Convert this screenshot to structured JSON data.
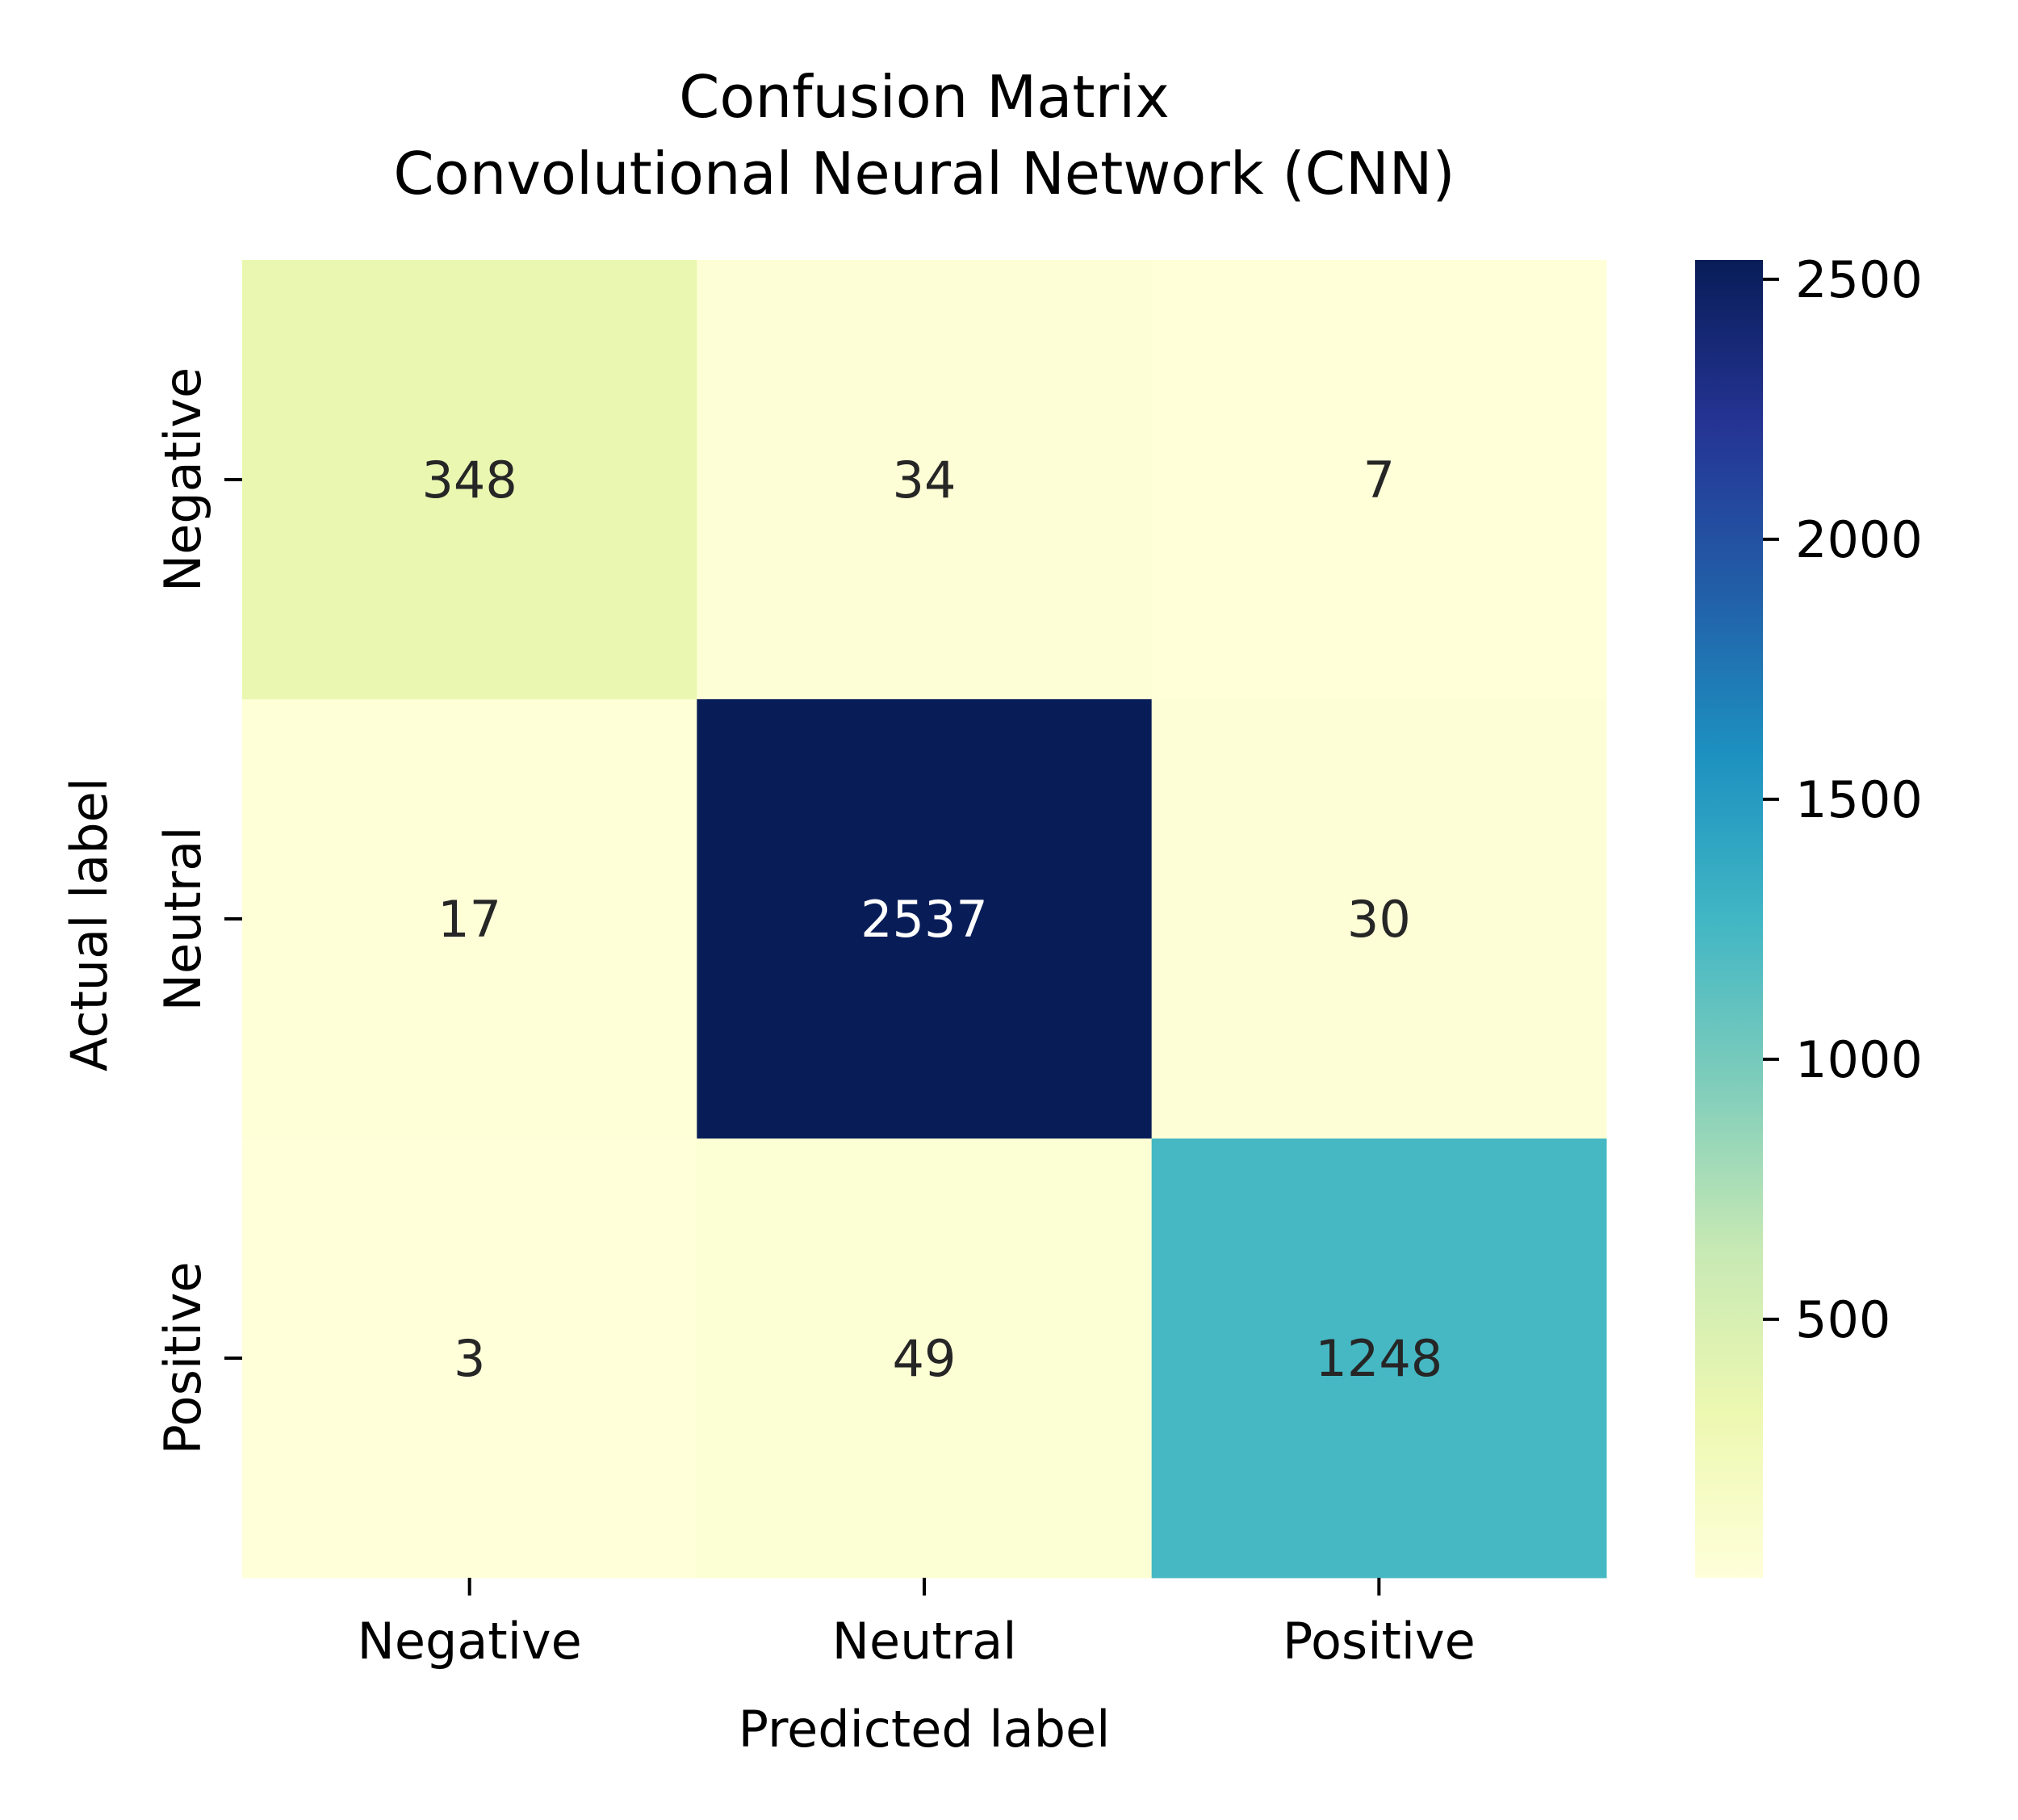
{
  "chart_data": {
    "type": "heatmap",
    "title": "Confusion Matrix",
    "subtitle": "Convolutional Neural Network (CNN)",
    "xlabel": "Predicted label",
    "ylabel": "Actual label",
    "x_categories": [
      "Negative",
      "Neutral",
      "Positive"
    ],
    "y_categories": [
      "Negative",
      "Neutral",
      "Positive"
    ],
    "values": [
      [
        348,
        34,
        7
      ],
      [
        17,
        2537,
        30
      ],
      [
        3,
        49,
        1248
      ]
    ],
    "colorbar": {
      "colormap": "YlGnBu",
      "range": [
        3,
        2537
      ],
      "ticks": [
        500,
        1000,
        1500,
        2000,
        2500
      ]
    },
    "grid": false
  }
}
